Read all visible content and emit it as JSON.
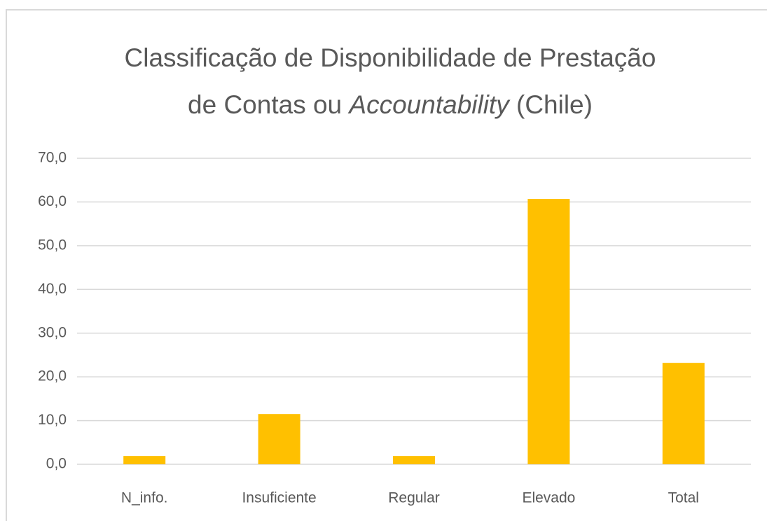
{
  "chart_data": {
    "type": "bar",
    "title": [
      "Classificação de Disponibilidade de Prestação",
      "de Contas ou ",
      "Accountability",
      " (Chile)"
    ],
    "categories": [
      "N_info.",
      "Insuficiente",
      "Regular",
      "Elevado",
      "Total"
    ],
    "values": [
      1.9,
      11.5,
      1.9,
      60.7,
      23.2
    ],
    "color": "#ffc000",
    "ylim": [
      0,
      70
    ],
    "yticks": [
      {
        "value": 0,
        "label": "0,0"
      },
      {
        "value": 10,
        "label": "10,0"
      },
      {
        "value": 20,
        "label": "20,0"
      },
      {
        "value": 30,
        "label": "30,0"
      },
      {
        "value": 40,
        "label": "40,0"
      },
      {
        "value": 50,
        "label": "50,0"
      },
      {
        "value": 60,
        "label": "60,0"
      },
      {
        "value": 70,
        "label": "70,0"
      }
    ],
    "grid": true
  }
}
